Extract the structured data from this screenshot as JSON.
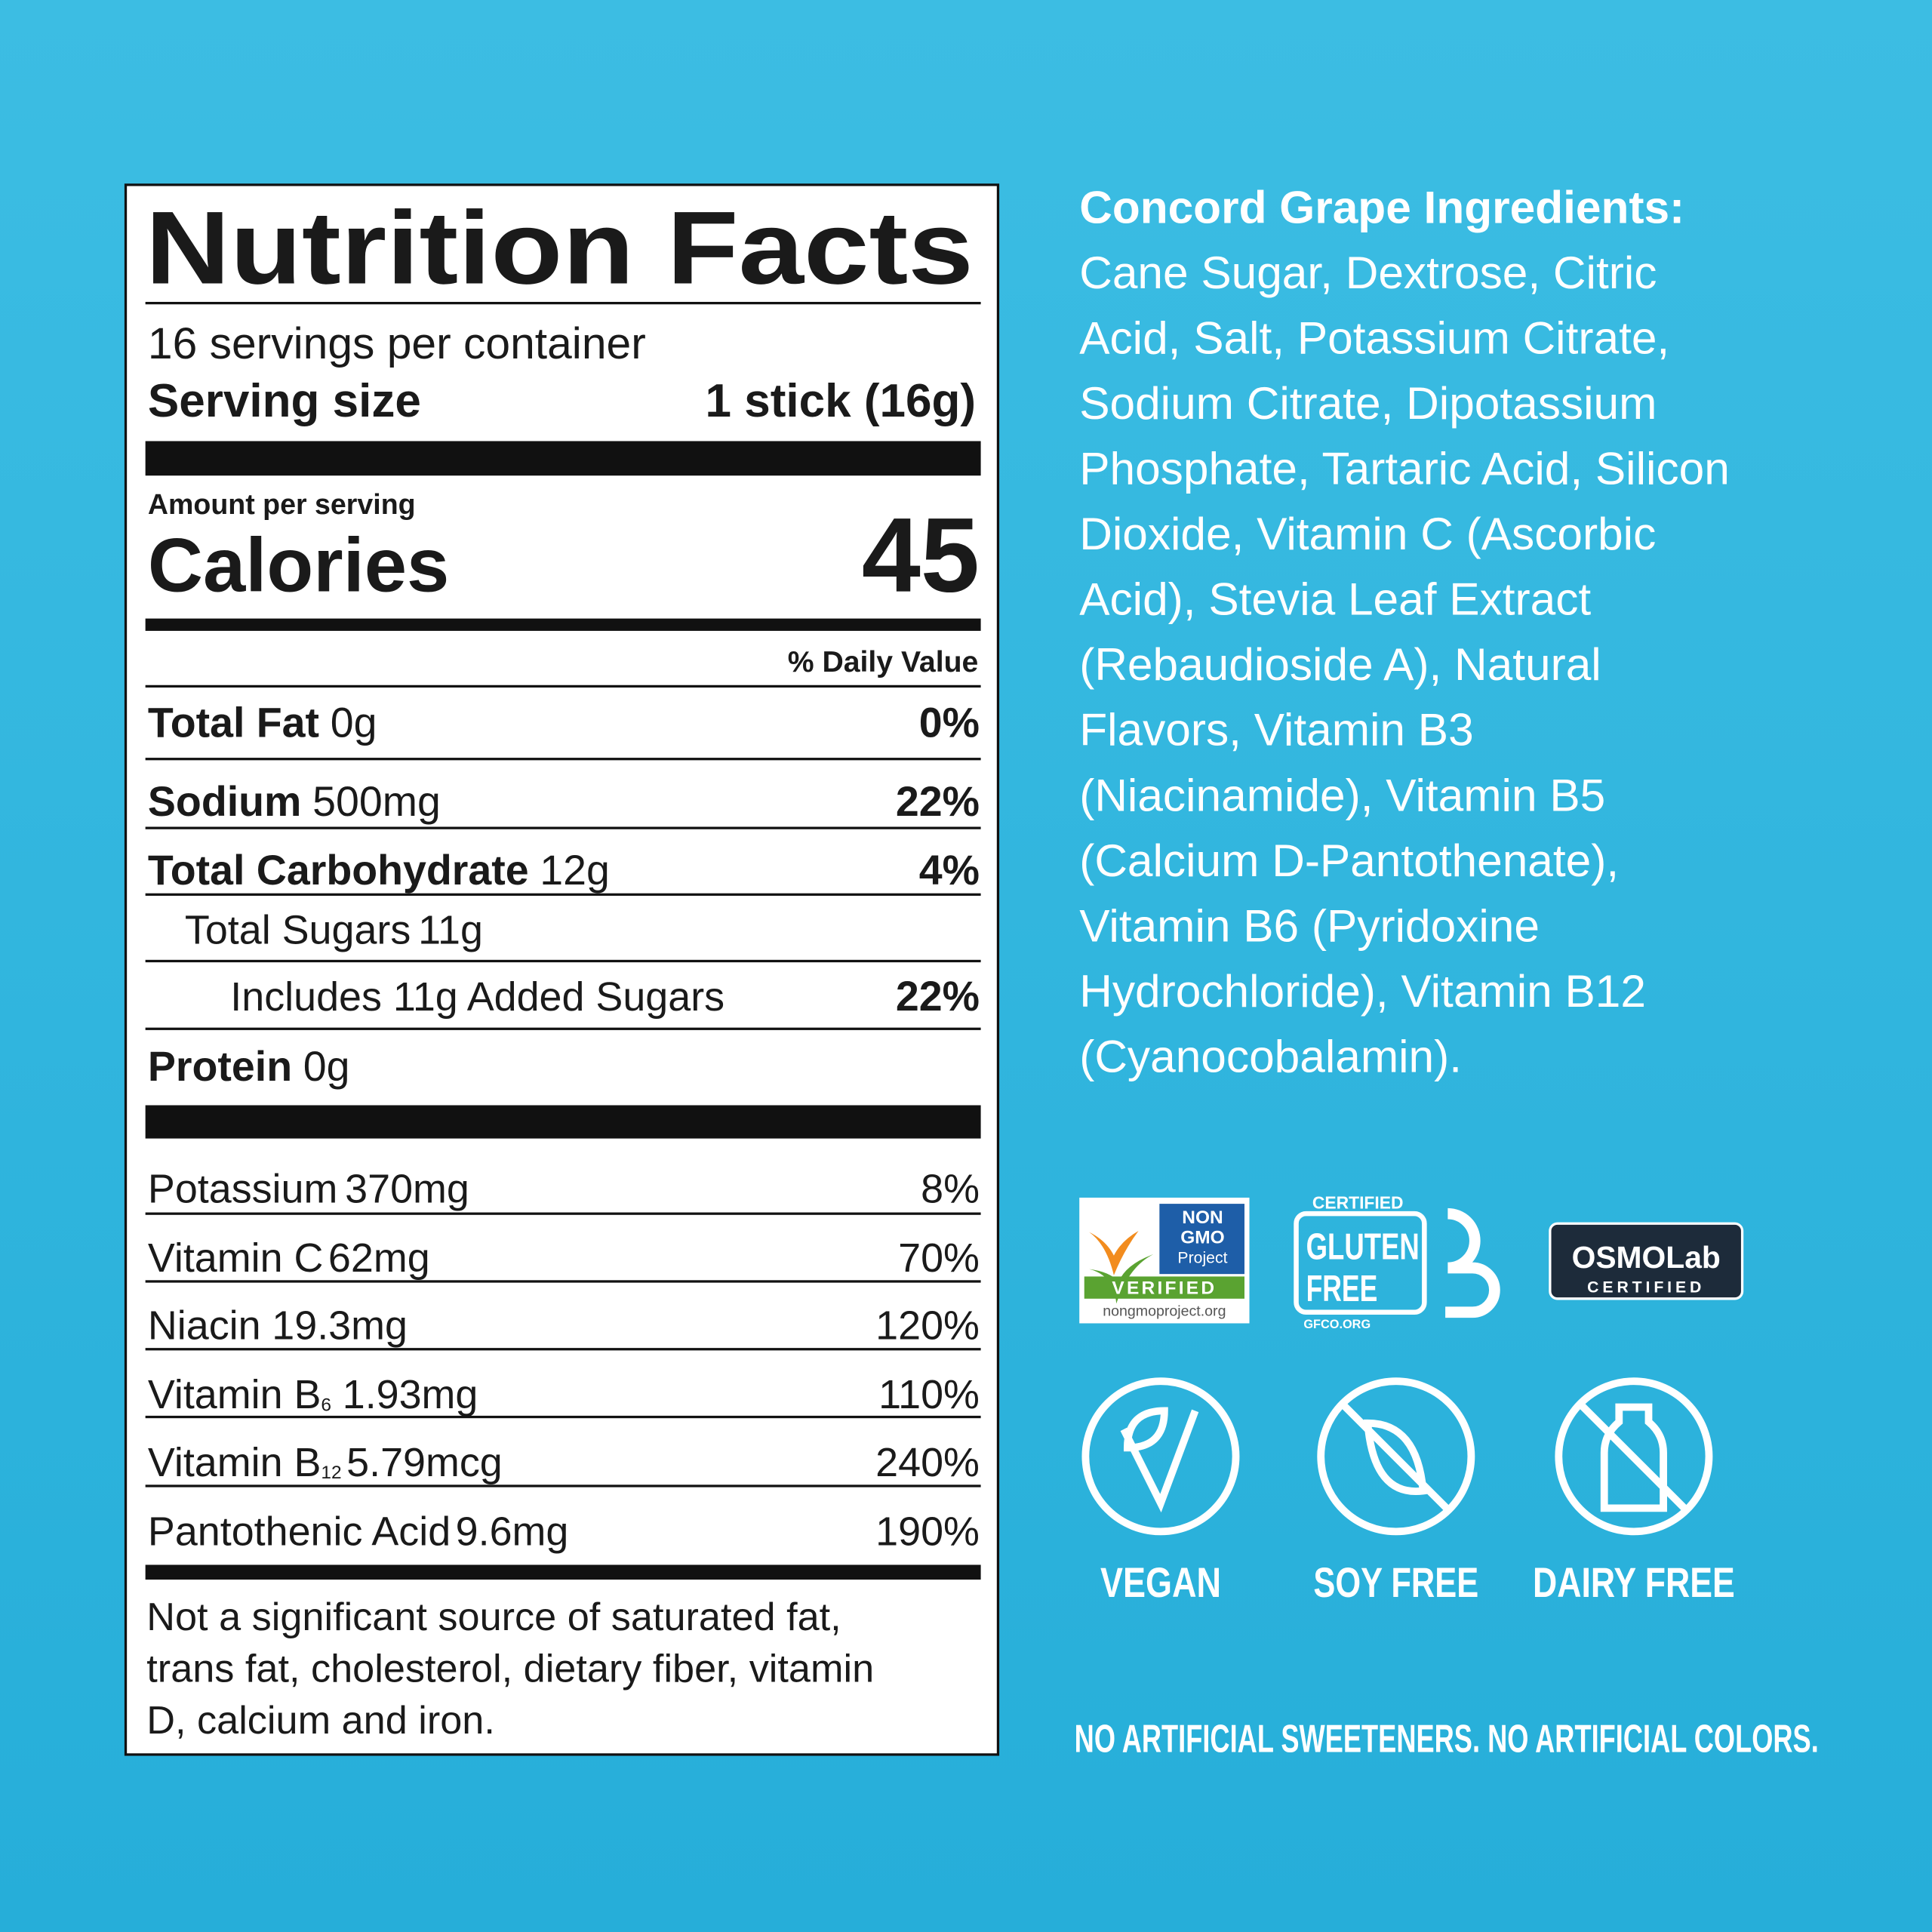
{
  "label": {
    "title": "Nutrition Facts",
    "servings": "16 servings per container",
    "serving_size": {
      "label": "Serving size",
      "value": "1 stick (16g)"
    },
    "amount_per_serving": "Amount per serving",
    "calories": {
      "label": "Calories",
      "value": "45"
    },
    "daily_value_header": "% Daily Value",
    "nutrients": [
      {
        "name": "Total Fat",
        "amount": "0g",
        "dv": "0%"
      },
      {
        "name": "Sodium",
        "amount": "500mg",
        "dv": "22%"
      },
      {
        "name": "Total Carbohydrate",
        "amount": "12g",
        "dv": "4%"
      },
      {
        "name": "Total Sugars",
        "amount": "11g"
      },
      {
        "name": "Includes 11g Added Sugars",
        "dv": "22%"
      },
      {
        "name": "Protein",
        "amount": "0g"
      }
    ],
    "vitamins": [
      {
        "name": "Potassium",
        "amount": "370mg",
        "dv": "8%"
      },
      {
        "name": "Vitamin C",
        "amount": "62mg",
        "dv": "70%"
      },
      {
        "name": "Niacin",
        "amount": "19.3mg",
        "dv": "120%"
      },
      {
        "name": "Vitamin B",
        "subscript": "6",
        "amount": "1.93mg",
        "dv": "110%"
      },
      {
        "name": "Vitamin B",
        "subscript": "12",
        "amount": "5.79mcg",
        "dv": "240%"
      },
      {
        "name": "Pantothenic Acid",
        "amount": "9.6mg",
        "dv": "190%"
      }
    ],
    "footnote": [
      "Not a significant source of saturated fat,",
      "trans fat, cholesterol, dietary fiber, vitamin",
      "D, calcium and iron."
    ]
  },
  "ingredients": {
    "title": "Concord Grape Ingredients:",
    "lines": [
      "Cane Sugar, Dextrose, Citric",
      "Acid, Salt, Potassium Citrate,",
      "Sodium Citrate, Dipotassium",
      "Phosphate, Tartaric Acid, Silicon",
      "Dioxide, Vitamin C (Ascorbic",
      "Acid), Stevia Leaf Extract",
      "(Rebaudioside A), Natural",
      "Flavors, Vitamin B3",
      "(Niacinamide), Vitamin B5",
      "(Calcium D-Pantothenate),",
      "Vitamin B6 (Pyridoxine",
      "Hydrochloride), Vitamin B12",
      "(Cyanocobalamin)."
    ]
  },
  "certifications": {
    "non_gmo": {
      "lines": [
        "NON",
        "GMO",
        "Project"
      ],
      "banner": "VERIFIED",
      "url": "nongmoproject.org"
    },
    "gluten_free": {
      "top": "CERTIFIED",
      "lines": [
        "GLUTEN",
        "FREE"
      ],
      "url": "GFCO.ORG"
    },
    "osmolab": {
      "name": "OSMOLab",
      "sub": "CERTIFIED"
    }
  },
  "attributes": [
    "VEGAN",
    "SOY FREE",
    "DAIRY FREE"
  ],
  "tagline": "NO ARTIFICIAL SWEETENERS. NO ARTIFICIAL COLORS."
}
